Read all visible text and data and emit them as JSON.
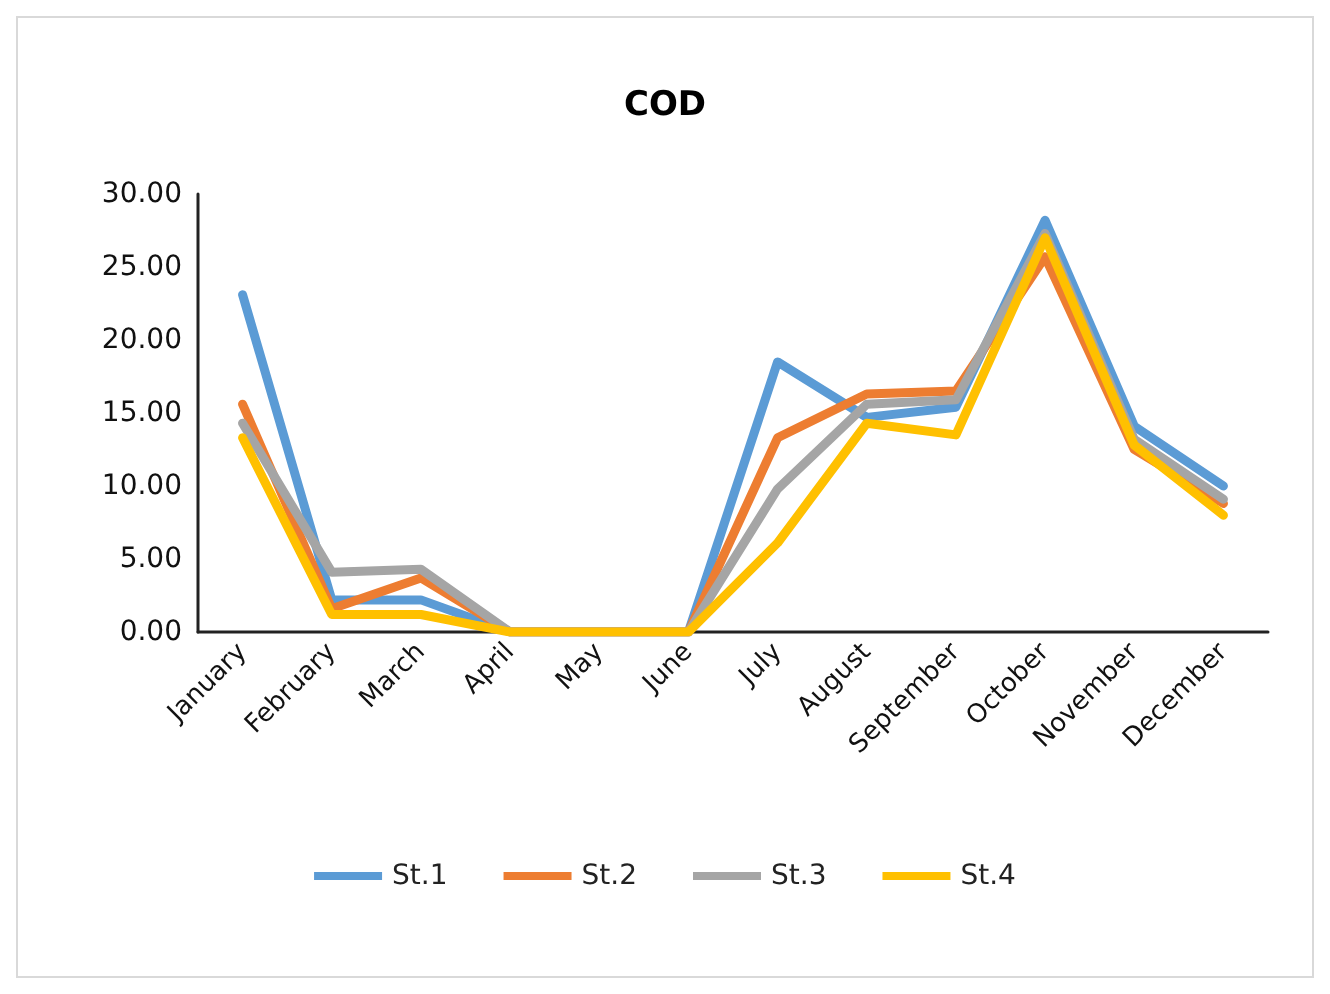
{
  "chart_data": {
    "type": "line",
    "title": "COD",
    "categories": [
      "January",
      "February",
      "March",
      "April",
      "May",
      "June",
      "July",
      "August",
      "September",
      "October",
      "November",
      "December"
    ],
    "series": [
      {
        "name": "St.1",
        "color": "#5b9bd5",
        "values": [
          23.1,
          2.2,
          2.2,
          0,
          0,
          0,
          18.5,
          14.7,
          15.4,
          28.2,
          14.1,
          10.0
        ]
      },
      {
        "name": "St.2",
        "color": "#ed7d31",
        "values": [
          15.6,
          1.6,
          3.7,
          0,
          0,
          0,
          13.3,
          16.3,
          16.5,
          25.7,
          12.5,
          8.8
        ]
      },
      {
        "name": "St.3",
        "color": "#a5a5a5",
        "values": [
          14.3,
          4.1,
          4.3,
          0,
          0,
          0,
          9.8,
          15.6,
          15.9,
          27.3,
          13.2,
          9.1
        ]
      },
      {
        "name": "St.4",
        "color": "#ffc000",
        "values": [
          13.3,
          1.2,
          1.2,
          0,
          0,
          0,
          6.1,
          14.3,
          13.5,
          27.0,
          12.8,
          8.0
        ]
      }
    ],
    "ylim": [
      0,
      30
    ],
    "yticks": [
      {
        "value": 0,
        "label": "0.00"
      },
      {
        "value": 5,
        "label": "5.00"
      },
      {
        "value": 10,
        "label": "10.00"
      },
      {
        "value": 15,
        "label": "15.00"
      },
      {
        "value": 20,
        "label": "20.00"
      },
      {
        "value": 25,
        "label": "25.00"
      },
      {
        "value": 30,
        "label": "30.00"
      }
    ],
    "grid": false,
    "legend": "bottom",
    "marker": "none",
    "line_style": "solid"
  }
}
